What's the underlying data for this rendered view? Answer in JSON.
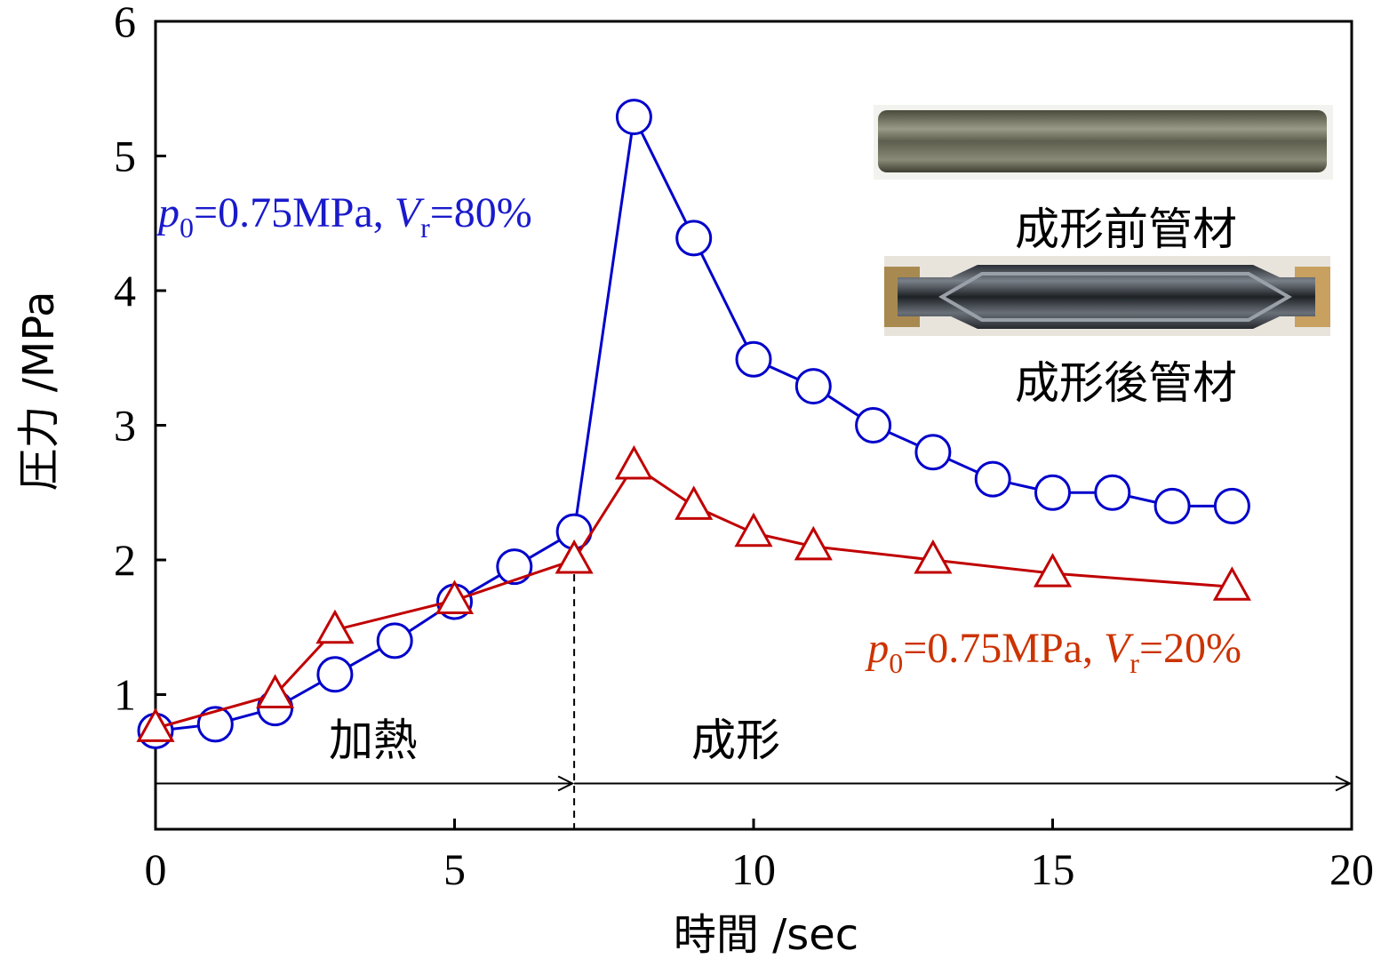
{
  "chart_data": {
    "type": "line",
    "xlabel": "時間 /sec",
    "ylabel": "圧力 /MPa",
    "xlim": [
      0,
      20
    ],
    "ylim": [
      0,
      6
    ],
    "xticks": [
      0,
      5,
      10,
      15,
      20
    ],
    "yticks": [
      1,
      2,
      3,
      4,
      5,
      6
    ],
    "series": [
      {
        "color": "#0000cc",
        "marker": "circle",
        "x": [
          0,
          1,
          2,
          3,
          4,
          5,
          6,
          7,
          8,
          9,
          10,
          11,
          12,
          13,
          14,
          15,
          16,
          17,
          18
        ],
        "values": [
          0.73,
          0.78,
          0.9,
          1.15,
          1.4,
          1.69,
          1.95,
          2.21,
          5.29,
          4.39,
          3.49,
          3.29,
          3.0,
          2.8,
          2.6,
          2.5,
          2.5,
          2.4,
          2.4
        ]
      },
      {
        "color": "#c00000",
        "marker": "triangle",
        "x": [
          0,
          2,
          3,
          5,
          7,
          8,
          9,
          10,
          11,
          13,
          15,
          18
        ],
        "values": [
          0.75,
          1.0,
          1.48,
          1.7,
          2.0,
          2.7,
          2.4,
          2.2,
          2.1,
          2.0,
          1.9,
          1.8
        ]
      }
    ],
    "annotations": [
      {
        "color": "#1a1acc",
        "parts": [
          {
            "text": "p",
            "italic": true
          },
          {
            "text": "0",
            "sub": true
          },
          {
            "text": "=0.75MPa, "
          },
          {
            "text": "V",
            "italic": true
          },
          {
            "text": "r",
            "sub": true
          },
          {
            "text": "=80%"
          }
        ]
      },
      {
        "color": "#cc3300",
        "parts": [
          {
            "text": "p",
            "italic": true
          },
          {
            "text": "0",
            "sub": true
          },
          {
            "text": "=0.75MPa, "
          },
          {
            "text": "V",
            "italic": true
          },
          {
            "text": "r",
            "sub": true
          },
          {
            "text": "=20%"
          }
        ]
      }
    ],
    "phase_boundary": 7,
    "phase_arrow_y": 0.34,
    "phases": [
      {
        "label": "加熱",
        "from": 0,
        "to": 7
      },
      {
        "label": "成形",
        "from": 7,
        "to": 20
      }
    ],
    "inset_labels": [
      "成形前管材",
      "成形後管材"
    ]
  }
}
